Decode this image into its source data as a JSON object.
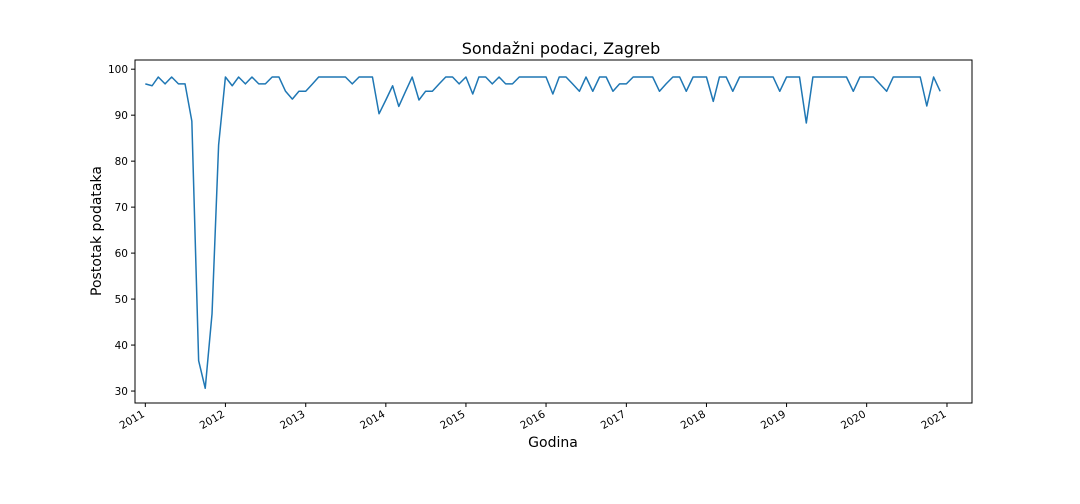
{
  "chart_data": {
    "type": "line",
    "title": "Sondažni podaci, Zagreb",
    "xlabel": "Godina",
    "ylabel": "Postotak podataka",
    "xlim": [
      "2010-11-15",
      "2021-04-25"
    ],
    "ylim": [
      27.4,
      102.0
    ],
    "grid": false,
    "x_ticks": [
      {
        "date": "2011-01-01",
        "label": "2011"
      },
      {
        "date": "2012-01-01",
        "label": "2012"
      },
      {
        "date": "2013-01-01",
        "label": "2013"
      },
      {
        "date": "2014-01-01",
        "label": "2014"
      },
      {
        "date": "2015-01-01",
        "label": "2015"
      },
      {
        "date": "2016-01-01",
        "label": "2016"
      },
      {
        "date": "2017-01-01",
        "label": "2017"
      },
      {
        "date": "2018-01-01",
        "label": "2018"
      },
      {
        "date": "2019-01-01",
        "label": "2019"
      },
      {
        "date": "2020-01-01",
        "label": "2020"
      },
      {
        "date": "2021-01-01",
        "label": "2021"
      }
    ],
    "y_ticks": [
      {
        "value": 30,
        "label": "30"
      },
      {
        "value": 40,
        "label": "40"
      },
      {
        "value": 50,
        "label": "50"
      },
      {
        "value": 60,
        "label": "60"
      },
      {
        "value": 70,
        "label": "70"
      },
      {
        "value": 80,
        "label": "80"
      },
      {
        "value": 90,
        "label": "90"
      },
      {
        "value": 100,
        "label": "100"
      }
    ],
    "series": [
      {
        "color": "#1f77b4",
        "start": "2011-01",
        "values": [
          96.8,
          96.4,
          98.3,
          96.8,
          98.3,
          96.8,
          96.8,
          88.7,
          36.6,
          30.6,
          46.8,
          83.5,
          98.3,
          96.4,
          98.3,
          96.8,
          98.3,
          96.8,
          96.8,
          98.3,
          98.3,
          95.2,
          93.5,
          95.2,
          95.2,
          96.8,
          98.3,
          98.3,
          98.3,
          98.3,
          98.3,
          96.8,
          98.3,
          98.3,
          98.3,
          90.3,
          93.3,
          96.4,
          91.9,
          95.2,
          98.3,
          93.3,
          95.2,
          95.2,
          96.8,
          98.3,
          98.3,
          96.8,
          98.3,
          94.6,
          98.3,
          98.3,
          96.8,
          98.3,
          96.8,
          96.8,
          98.3,
          98.3,
          98.3,
          98.3,
          98.3,
          94.6,
          98.3,
          98.3,
          96.8,
          95.2,
          98.3,
          95.2,
          98.3,
          98.3,
          95.2,
          96.8,
          96.8,
          98.3,
          98.3,
          98.3,
          98.3,
          95.2,
          96.8,
          98.3,
          98.3,
          95.2,
          98.3,
          98.3,
          98.3,
          93.0,
          98.3,
          98.3,
          95.2,
          98.3,
          98.3,
          98.3,
          98.3,
          98.3,
          98.3,
          95.2,
          98.3,
          98.3,
          98.3,
          88.3,
          98.3,
          98.3,
          98.3,
          98.3,
          98.3,
          98.3,
          95.2,
          98.3,
          98.3,
          98.3,
          96.8,
          95.2,
          98.3,
          98.3,
          98.3,
          98.3,
          98.3,
          92.0,
          98.3,
          95.2
        ]
      }
    ]
  }
}
